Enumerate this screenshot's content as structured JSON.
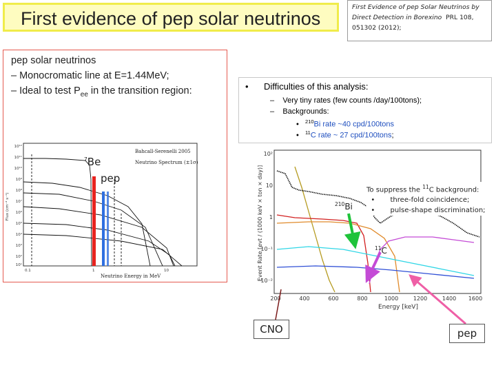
{
  "title": "First evidence of pep solar neutrinos",
  "reference": {
    "line1": "First Evidence of pep Solar Neutrinos by",
    "line2": "Direct Detection in Borexino",
    "journal": "PRL 108,",
    "line3": "051302 (2012);"
  },
  "left_text": {
    "line1": "pep solar neutrinos",
    "line2": "– Monocromatic line at E=1.44MeV;",
    "line3_prefix": "– Ideal to test P",
    "line3_sub": "ee",
    "line3_suffix": "in the transition region:"
  },
  "difficulties": {
    "heading": "Difficulties of this analysis:",
    "item1": "Very tiny rates (few counts /day/100tons);",
    "item2": "Backgrounds:",
    "sub1_sup": "210",
    "sub1_rest": "Bi rate ~40 cpd/100tons",
    "sub2_sup": "11",
    "sub2_rest": "C  rate ~ 27 cpd/100tons",
    "sub2_end": ";"
  },
  "suppress": {
    "line1_pre": "To suppress the",
    "line1_sup": "11",
    "line1_post": "C  background:",
    "item1": "three-fold coincidence;",
    "item2": "pulse-shape discrimination;"
  },
  "labels": {
    "be7_sup": "7",
    "be7": "Be",
    "pep_left": "pep",
    "bi210_sup": "210",
    "bi210": "Bi",
    "c11_sup": "11",
    "c11": "C",
    "cno": "CNO",
    "pep_right": "pep"
  },
  "spectrum_plot": {
    "legend_title": "Bahcall-Serenelli 2005",
    "legend_sub": "Neutrino Spectrum (±1σ)",
    "ylabel": "Flux (cm⁻² s⁻¹)",
    "xlabel": "Neutrino Energy in MeV",
    "y_ticks": [
      "10¹²",
      "10¹¹",
      "10¹⁰",
      "10⁹",
      "10⁸",
      "10⁷",
      "10⁶",
      "10⁵",
      "10⁴",
      "10³",
      "10²",
      "10¹"
    ],
    "x_ticks": [
      "0.1",
      "1",
      "10"
    ]
  },
  "energy_plot": {
    "ylabel": "Event Rate [evt / (1000 keV × ton × day)]",
    "xlabel": "Energy [keV]",
    "y_ticks": [
      "10²",
      "10",
      "1",
      "10⁻¹",
      "10⁻²"
    ],
    "x_ticks": [
      "200",
      "400",
      "600",
      "800",
      "1000",
      "1200",
      "1400",
      "1600"
    ]
  },
  "colors": {
    "title_bg": "#fefcc0",
    "be7_bar": "#e8231f",
    "pep_bar": "#2f6fe0",
    "arrow_green": "#1fc33a",
    "arrow_magenta": "#c44bd6",
    "cno_fill": "#ffffff",
    "pep_fill": "#ffffff"
  }
}
